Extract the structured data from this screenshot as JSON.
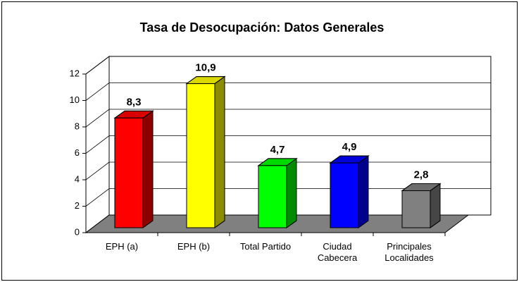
{
  "chart_data": {
    "type": "bar3d",
    "title": "Tasa de Desocupación: Datos Generales",
    "categories": [
      "EPH (a)",
      "EPH (b)",
      "Total Partido",
      "Ciudad Cabecera",
      "Principales Localidades"
    ],
    "values": [
      8.3,
      10.9,
      4.7,
      4.9,
      2.8
    ],
    "value_labels": [
      "8,3",
      "10,9",
      "4,7",
      "4,9",
      "2,8"
    ],
    "colors": [
      "#ff0000",
      "#ffff00",
      "#00ff00",
      "#0000ff",
      "#808080"
    ],
    "ylim": [
      0,
      12
    ],
    "yticks": [
      0,
      2,
      4,
      6,
      8,
      10,
      12
    ],
    "grid": true
  }
}
